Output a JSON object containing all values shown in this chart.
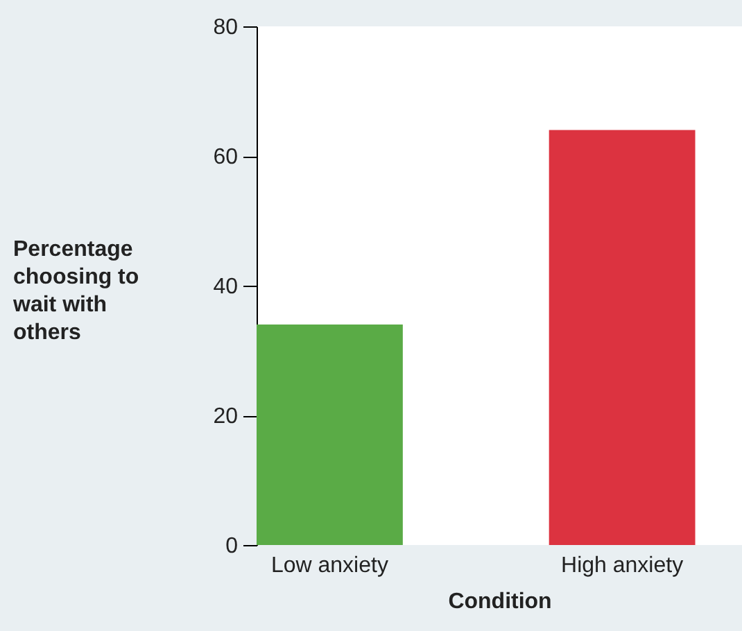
{
  "chart_data": {
    "type": "bar",
    "xlabel": "Condition",
    "ylabel": "Percentage choosing to wait with others",
    "categories": [
      "Low anxiety",
      "High anxiety"
    ],
    "values": [
      34,
      64
    ],
    "colors": [
      "#5aab46",
      "#dc3340"
    ],
    "ylim": [
      0,
      80
    ],
    "yticks": [
      0,
      20,
      40,
      60,
      80
    ]
  }
}
